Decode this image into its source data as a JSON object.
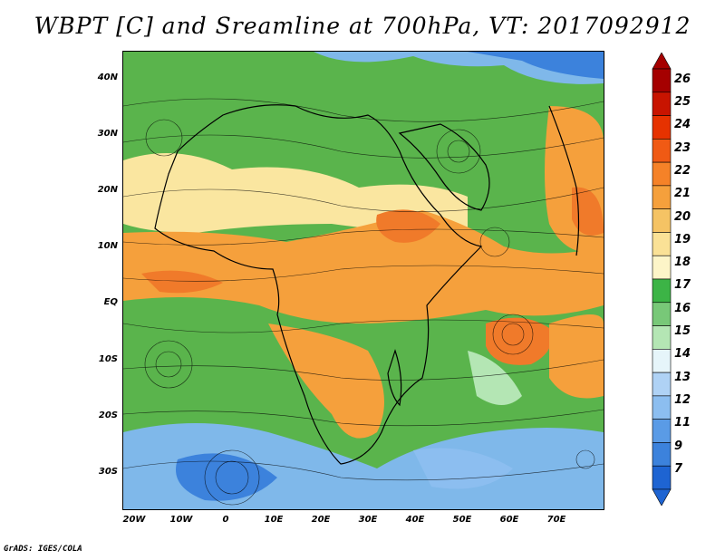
{
  "title": "WBPT [C] and Sreamline at 700hPa, VT: 2017092912",
  "credit": "GrADS: IGES/COLA",
  "lat_labels": [
    "40N",
    "30N",
    "20N",
    "10N",
    "EQ",
    "10S",
    "20S",
    "30S"
  ],
  "lon_labels": [
    "20W",
    "10W",
    "0",
    "10E",
    "20E",
    "30E",
    "40E",
    "50E",
    "60E",
    "70E"
  ],
  "colorbar": {
    "labels": [
      "26",
      "25",
      "24",
      "23",
      "22",
      "21",
      "20",
      "19",
      "18",
      "17",
      "16",
      "15",
      "14",
      "13",
      "12",
      "11",
      "9",
      "7"
    ],
    "colors": [
      "#a50000",
      "#c81400",
      "#e63200",
      "#f05a14",
      "#f58228",
      "#f5a03c",
      "#f5c364",
      "#fae196",
      "#fdf5c8",
      "#3cb446",
      "#78c878",
      "#b4e6b4",
      "#e6f5fa",
      "#afd2f5",
      "#8cbef0",
      "#5a9be6",
      "#3c82dc",
      "#1e64d2"
    ]
  },
  "map_colors": {
    "warm": "#f5a03c",
    "hot": "#f07a2a",
    "green": "#5ab44c",
    "lightgreen": "#9cd690",
    "yellow": "#fae6a0",
    "blue": "#7fb8ea",
    "darkblue": "#3c82dc",
    "paleblue": "#c8e4f5"
  }
}
